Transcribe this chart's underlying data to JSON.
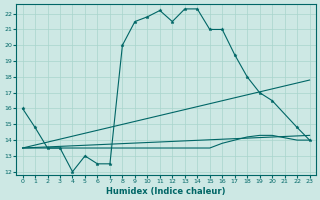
{
  "xlabel": "Humidex (Indice chaleur)",
  "background_color": "#cde8e4",
  "line_color": "#006666",
  "xlim": [
    -0.5,
    23.5
  ],
  "ylim": [
    11.8,
    22.6
  ],
  "xticks": [
    0,
    1,
    2,
    3,
    4,
    5,
    6,
    7,
    8,
    9,
    10,
    11,
    12,
    13,
    14,
    15,
    16,
    17,
    18,
    19,
    20,
    21,
    22,
    23
  ],
  "yticks": [
    12,
    13,
    14,
    15,
    16,
    17,
    18,
    19,
    20,
    21,
    22
  ],
  "grid_color": "#a8d5cc",
  "series": [
    {
      "x": [
        0,
        1,
        2,
        3,
        4,
        5,
        6,
        7,
        8,
        9,
        10,
        11,
        12,
        13,
        14,
        15,
        16,
        17,
        18,
        19,
        20,
        22,
        23
      ],
      "y": [
        16.0,
        14.8,
        13.5,
        13.5,
        12.0,
        13.0,
        12.5,
        12.5,
        20.0,
        21.5,
        21.8,
        22.2,
        21.5,
        22.3,
        22.3,
        21.0,
        21.0,
        19.4,
        18.0,
        17.0,
        16.5,
        14.8,
        14.0
      ],
      "has_markers": true
    },
    {
      "x": [
        0,
        1,
        2,
        3,
        4,
        5,
        6,
        7,
        8,
        9,
        10,
        11,
        12,
        13,
        14,
        15,
        16,
        17,
        18,
        19,
        20,
        22,
        23
      ],
      "y": [
        13.5,
        13.5,
        13.5,
        13.5,
        13.5,
        13.5,
        13.5,
        13.5,
        13.5,
        13.5,
        13.5,
        13.5,
        13.5,
        13.5,
        13.5,
        13.5,
        13.8,
        14.0,
        14.2,
        14.3,
        14.3,
        14.0,
        14.0
      ],
      "has_markers": false
    },
    {
      "x": [
        0,
        23
      ],
      "y": [
        13.5,
        17.8
      ],
      "has_markers": false
    },
    {
      "x": [
        0,
        23
      ],
      "y": [
        13.5,
        14.3
      ],
      "has_markers": false
    }
  ]
}
